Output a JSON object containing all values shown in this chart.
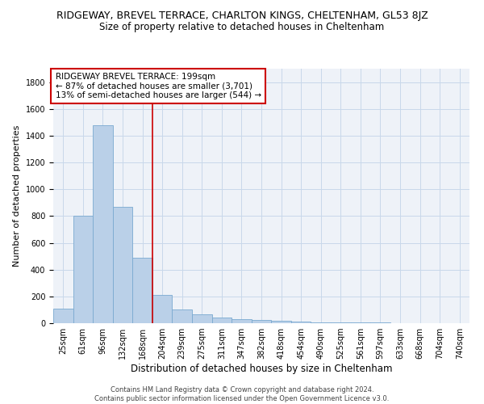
{
  "title": "RIDGEWAY, BREVEL TERRACE, CHARLTON KINGS, CHELTENHAM, GL53 8JZ",
  "subtitle": "Size of property relative to detached houses in Cheltenham",
  "xlabel": "Distribution of detached houses by size in Cheltenham",
  "ylabel": "Number of detached properties",
  "categories": [
    "25sqm",
    "61sqm",
    "96sqm",
    "132sqm",
    "168sqm",
    "204sqm",
    "239sqm",
    "275sqm",
    "311sqm",
    "347sqm",
    "382sqm",
    "418sqm",
    "454sqm",
    "490sqm",
    "525sqm",
    "561sqm",
    "597sqm",
    "633sqm",
    "668sqm",
    "704sqm",
    "740sqm"
  ],
  "values": [
    110,
    800,
    1480,
    870,
    490,
    210,
    105,
    65,
    42,
    30,
    25,
    20,
    15,
    7,
    5,
    5,
    4,
    3,
    2,
    2,
    2
  ],
  "bar_color": "#bad0e8",
  "bar_edge_color": "#7aaad0",
  "grid_color": "#c8d8ea",
  "background_color": "#eef2f8",
  "vline_x_index": 5,
  "vline_color": "#cc0000",
  "annotation_box_color": "#cc0000",
  "annotation_lines": [
    "RIDGEWAY BREVEL TERRACE: 199sqm",
    "← 87% of detached houses are smaller (3,701)",
    "13% of semi-detached houses are larger (544) →"
  ],
  "footer": "Contains HM Land Registry data © Crown copyright and database right 2024.\nContains public sector information licensed under the Open Government Licence v3.0.",
  "ylim": [
    0,
    1900
  ],
  "yticks": [
    0,
    200,
    400,
    600,
    800,
    1000,
    1200,
    1400,
    1600,
    1800
  ],
  "title_fontsize": 9,
  "subtitle_fontsize": 8.5,
  "xlabel_fontsize": 8.5,
  "ylabel_fontsize": 8,
  "tick_fontsize": 7,
  "annotation_fontsize": 7.5,
  "footer_fontsize": 6.0
}
